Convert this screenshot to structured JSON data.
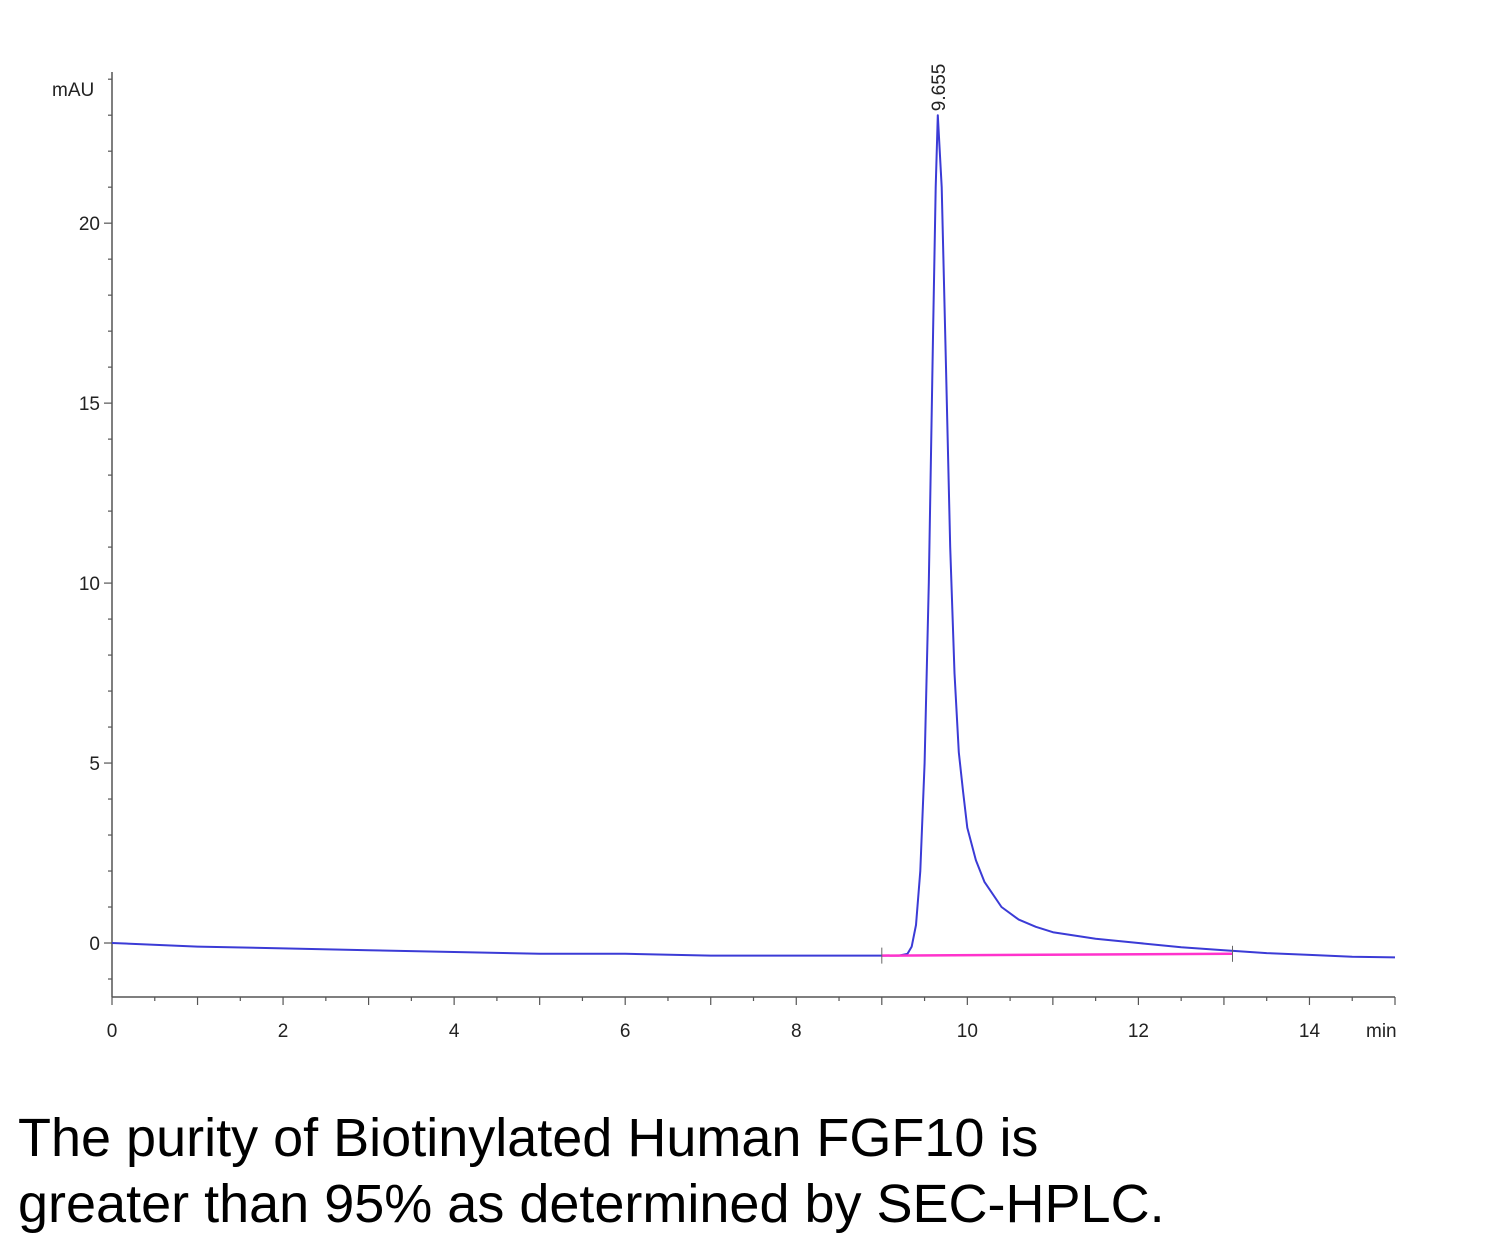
{
  "chart_data": {
    "type": "line",
    "title": "",
    "xlabel": "min",
    "ylabel": "mAU",
    "xlim": [
      0,
      15
    ],
    "ylim": [
      -1.5,
      24.2
    ],
    "x_ticks": [
      "0",
      "2",
      "4",
      "6",
      "8",
      "10",
      "12",
      "14"
    ],
    "y_ticks": [
      "0",
      "5",
      "10",
      "15",
      "20"
    ],
    "grid": false,
    "series": [
      {
        "color": "#3b3bd6",
        "points": [
          [
            0,
            0.0
          ],
          [
            1,
            -0.1
          ],
          [
            2,
            -0.15
          ],
          [
            3,
            -0.2
          ],
          [
            4,
            -0.25
          ],
          [
            5,
            -0.3
          ],
          [
            6,
            -0.3
          ],
          [
            7,
            -0.35
          ],
          [
            8,
            -0.35
          ],
          [
            9,
            -0.35
          ],
          [
            9.2,
            -0.35
          ],
          [
            9.3,
            -0.3
          ],
          [
            9.35,
            -0.1
          ],
          [
            9.4,
            0.5
          ],
          [
            9.45,
            2.0
          ],
          [
            9.5,
            5.0
          ],
          [
            9.55,
            10.0
          ],
          [
            9.6,
            17.0
          ],
          [
            9.63,
            21.0
          ],
          [
            9.655,
            23.0
          ],
          [
            9.7,
            21.0
          ],
          [
            9.75,
            16.0
          ],
          [
            9.8,
            11.0
          ],
          [
            9.85,
            7.5
          ],
          [
            9.9,
            5.3
          ],
          [
            9.95,
            4.2
          ],
          [
            10.0,
            3.2
          ],
          [
            10.1,
            2.3
          ],
          [
            10.2,
            1.7
          ],
          [
            10.4,
            1.0
          ],
          [
            10.6,
            0.65
          ],
          [
            10.8,
            0.45
          ],
          [
            11,
            0.3
          ],
          [
            11.5,
            0.12
          ],
          [
            12,
            0.0
          ],
          [
            12.5,
            -0.12
          ],
          [
            13,
            -0.2
          ],
          [
            13.5,
            -0.28
          ],
          [
            14,
            -0.33
          ],
          [
            14.5,
            -0.38
          ],
          [
            15,
            -0.4
          ]
        ]
      },
      {
        "color": "#ff33cc",
        "points": [
          [
            9.0,
            -0.35
          ],
          [
            13.1,
            -0.3
          ]
        ]
      }
    ],
    "annotations": [
      {
        "text": "9.655",
        "x": 9.655,
        "y": 23.0
      }
    ]
  },
  "caption": {
    "line1": "The purity of Biotinylated Human FGF10 is",
    "line2": "greater than 95% as determined by SEC-HPLC."
  }
}
